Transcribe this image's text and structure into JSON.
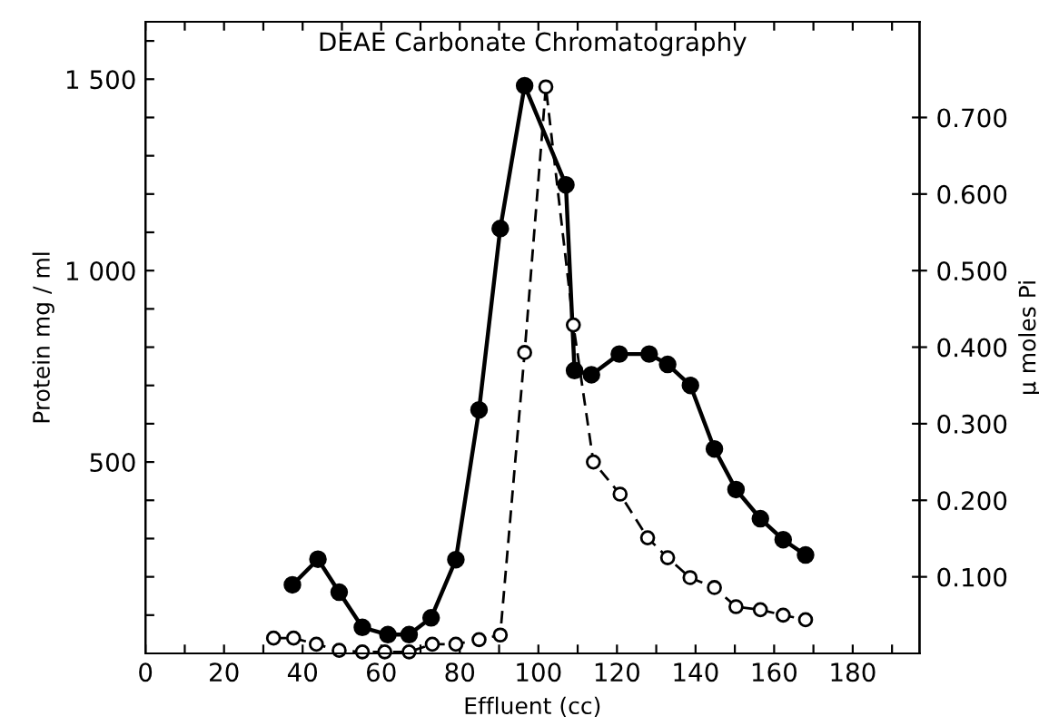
{
  "chart_data": {
    "type": "line",
    "title": "DEAE Carbonate Chromatography",
    "xlabel": "Effluent (cc)",
    "ylabel": "Protein mg / ml",
    "y2label": "μ moles Pi",
    "xlim": [
      0,
      197
    ],
    "xticks": [
      0,
      {
        "value": 10,
        "label": null
      },
      20,
      {
        "value": 30,
        "label": null
      },
      40,
      {
        "value": 50,
        "label": null
      },
      60,
      {
        "value": 70,
        "label": null
      },
      80,
      {
        "value": 90,
        "label": null
      },
      100,
      {
        "value": 110,
        "label": null
      },
      120,
      {
        "value": 130,
        "label": null
      },
      140,
      {
        "value": 150,
        "label": null
      },
      160,
      {
        "value": 170,
        "label": null
      },
      180,
      {
        "value": 190,
        "label": null
      }
    ],
    "ylim": [
      0,
      1650
    ],
    "yticks": [
      {
        "value": 100,
        "label": null
      },
      {
        "value": 200,
        "label": null
      },
      {
        "value": 300,
        "label": null
      },
      {
        "value": 400,
        "label": null
      },
      500,
      {
        "value": 600,
        "label": null
      },
      {
        "value": 700,
        "label": null
      },
      {
        "value": 800,
        "label": null
      },
      {
        "value": 900,
        "label": null
      },
      {
        "value": 1000,
        "label": "1 000"
      },
      {
        "value": 1100,
        "label": null
      },
      {
        "value": 1200,
        "label": null
      },
      {
        "value": 1300,
        "label": null
      },
      {
        "value": 1400,
        "label": null
      },
      {
        "value": 1500,
        "label": "1 500"
      },
      {
        "value": 1600,
        "label": null
      }
    ],
    "y2lim": [
      0,
      0.825
    ],
    "y2ticks": [
      {
        "value": 0.1,
        "label": "0.100"
      },
      {
        "value": 0.2,
        "label": "0.200"
      },
      {
        "value": 0.3,
        "label": "0.300"
      },
      {
        "value": 0.4,
        "label": "0.400"
      },
      {
        "value": 0.5,
        "label": "0.500"
      },
      {
        "value": 0.6,
        "label": "0.600"
      },
      {
        "value": 0.7,
        "label": "0.700"
      }
    ],
    "grid": false,
    "legend": false,
    "marker": "circle",
    "series": [
      {
        "color": "#000000",
        "line_style": "solid",
        "x": [
          37.4,
          43.9,
          49.3,
          55.2,
          61.7,
          67.1,
          72.7,
          79.0,
          84.9,
          90.3,
          96.5,
          107.0,
          109.2,
          113.5,
          120.6,
          128.2,
          132.9,
          138.7,
          144.8,
          150.3,
          156.5,
          162.3,
          168.0
        ],
        "values": [
          179,
          246,
          160,
          68,
          49,
          49,
          93,
          245,
          636,
          1110,
          1483,
          1224,
          739,
          728,
          782,
          782,
          755,
          700,
          534,
          428,
          352,
          297,
          257
        ]
      },
      {
        "color": "#000000",
        "line_style": "dashed",
        "axis": "y2",
        "x": [
          32.6,
          37.7,
          43.5,
          49.3,
          55.2,
          60.9,
          67.1,
          73.0,
          79.0,
          84.9,
          90.3,
          96.5,
          101.9,
          108.9,
          114.0,
          120.8,
          127.8,
          132.9,
          138.6,
          144.8,
          150.3,
          156.5,
          162.3,
          168.0
        ],
        "values": [
          0.02,
          0.02,
          0.012,
          0.004,
          0.002,
          0.002,
          0.002,
          0.012,
          0.012,
          0.018,
          0.024,
          0.393,
          0.74,
          0.429,
          0.25,
          0.208,
          0.151,
          0.125,
          0.099,
          0.086,
          0.061,
          0.057,
          0.05,
          0.044
        ]
      }
    ]
  }
}
